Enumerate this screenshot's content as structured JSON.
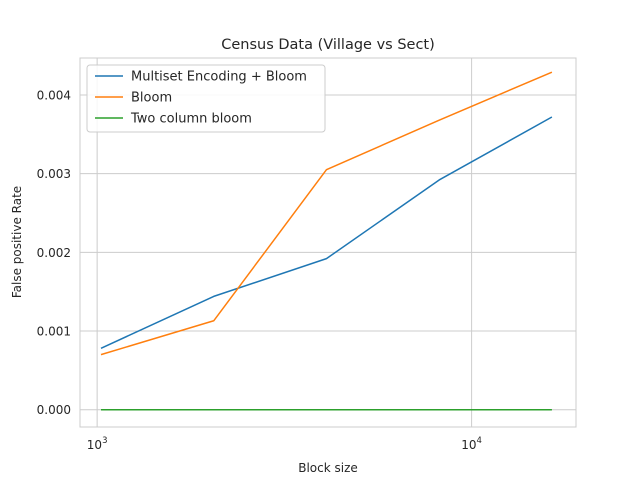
{
  "chart_data": {
    "type": "line",
    "title": "Census Data (Village vs Sect)",
    "xlabel": "Block size",
    "ylabel": "False positive Rate",
    "xscale": "log",
    "xlim": [
      900,
      19000
    ],
    "ylim": [
      -0.00022,
      0.00447
    ],
    "x": [
      1024,
      2048,
      4096,
      8192,
      16384
    ],
    "xticks": [
      {
        "value": 1000,
        "base": "10",
        "exp": "3"
      },
      {
        "value": 10000,
        "base": "10",
        "exp": "4"
      }
    ],
    "yticks": [
      {
        "value": 0.0,
        "label": "0.000"
      },
      {
        "value": 0.001,
        "label": "0.001"
      },
      {
        "value": 0.002,
        "label": "0.002"
      },
      {
        "value": 0.003,
        "label": "0.003"
      },
      {
        "value": 0.004,
        "label": "0.004"
      }
    ],
    "grid": true,
    "legend_position": "top-left",
    "series": [
      {
        "name": "Multiset Encoding + Bloom",
        "color": "#1f77b4",
        "values": [
          0.00078,
          0.00144,
          0.00192,
          0.00292,
          0.00372
        ]
      },
      {
        "name": "Bloom",
        "color": "#ff7f0e",
        "values": [
          0.0007,
          0.00113,
          0.00305,
          0.00368,
          0.00429
        ]
      },
      {
        "name": "Two column bloom",
        "color": "#2ca02c",
        "values": [
          0.0,
          0.0,
          0.0,
          0.0,
          0.0
        ]
      }
    ]
  }
}
